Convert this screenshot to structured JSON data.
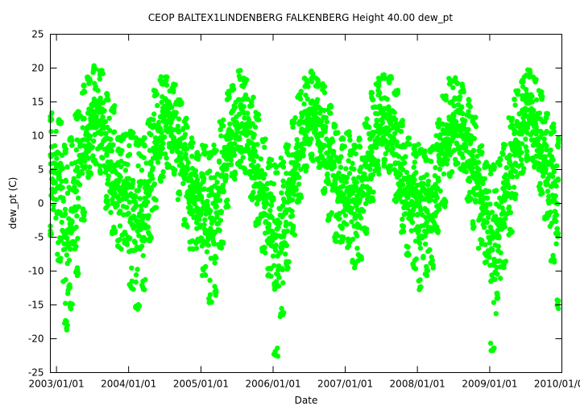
{
  "chart_data": {
    "type": "scatter",
    "title": "CEOP BALTEX1LINDENBERG FALKENBERG Height 40.00 dew_pt",
    "xlabel": "Date",
    "ylabel": "dew_pt (C)",
    "ylim": [
      -25,
      25
    ],
    "xlim": [
      "2002-12-01",
      "2010-01-01"
    ],
    "y_ticks": [
      25,
      20,
      15,
      10,
      5,
      0,
      -5,
      -10,
      -15,
      -20,
      -25
    ],
    "x_ticks": [
      "2003/01/01",
      "2004/01/01",
      "2005/01/01",
      "2006/01/01",
      "2007/01/01",
      "2008/01/01",
      "2009/01/01",
      "2010/01/01"
    ],
    "grid": false,
    "legend": "none",
    "marker_color": "#00ff00",
    "series_envelope": {
      "description_units": "degrees C",
      "x": [
        "2002-12-01",
        "2003-01-15",
        "2003-02-15",
        "2003-03-15",
        "2003-04-15",
        "2003-05-15",
        "2003-06-15",
        "2003-07-15",
        "2003-08-15",
        "2003-09-15",
        "2003-10-15",
        "2003-11-15",
        "2003-12-15",
        "2004-01-15",
        "2004-02-15",
        "2004-03-15",
        "2004-04-15",
        "2004-05-15",
        "2004-06-15",
        "2004-07-15",
        "2004-08-15",
        "2004-09-15",
        "2004-10-15",
        "2004-11-15",
        "2004-12-15",
        "2005-01-15",
        "2005-02-15",
        "2005-03-15",
        "2005-04-15",
        "2005-05-15",
        "2005-06-15",
        "2005-07-15",
        "2005-08-15",
        "2005-09-15",
        "2005-10-15",
        "2005-11-15",
        "2005-12-15",
        "2006-01-15",
        "2006-02-15",
        "2006-03-15",
        "2006-04-15",
        "2006-05-15",
        "2006-06-15",
        "2006-07-15",
        "2006-08-15",
        "2006-09-15",
        "2006-10-15",
        "2006-11-15",
        "2006-12-15",
        "2007-01-15",
        "2007-02-15",
        "2007-03-15",
        "2007-04-15",
        "2007-05-15",
        "2007-06-15",
        "2007-07-15",
        "2007-08-15",
        "2007-09-15",
        "2007-10-15",
        "2007-11-15",
        "2007-12-15",
        "2008-01-15",
        "2008-02-15",
        "2008-03-15",
        "2008-04-15",
        "2008-05-15",
        "2008-06-15",
        "2008-07-15",
        "2008-08-15",
        "2008-09-15",
        "2008-10-15",
        "2008-11-15",
        "2008-12-15",
        "2009-01-15",
        "2009-02-15",
        "2009-03-15",
        "2009-04-15",
        "2009-05-15",
        "2009-06-15",
        "2009-07-15",
        "2009-08-15",
        "2009-09-15",
        "2009-10-15",
        "2009-11-15",
        "2009-12-15"
      ],
      "upper": [
        13,
        12,
        8,
        9,
        13,
        17,
        18,
        20,
        19,
        16,
        14,
        10,
        10,
        10,
        9,
        9,
        12,
        16,
        18,
        18,
        17,
        15,
        12,
        9,
        7,
        8,
        7,
        8,
        12,
        16,
        17,
        19,
        18,
        15,
        13,
        9,
        6,
        5,
        6,
        8,
        12,
        16,
        18,
        19,
        18,
        17,
        14,
        11,
        9,
        10,
        8,
        9,
        12,
        16,
        18,
        19,
        18,
        16,
        12,
        9,
        8,
        8,
        7,
        8,
        12,
        16,
        18,
        18,
        17,
        15,
        12,
        8,
        6,
        5,
        6,
        8,
        12,
        16,
        18,
        19,
        18,
        16,
        13,
        11,
        9
      ],
      "lower": [
        -4,
        -8,
        -18,
        -15,
        -10,
        -2,
        4,
        6,
        5,
        0,
        -4,
        -6,
        -6,
        -12,
        -15,
        -12,
        -5,
        0,
        4,
        6,
        5,
        1,
        -3,
        -6,
        -6,
        -10,
        -14,
        -13,
        -6,
        0,
        4,
        6,
        5,
        1,
        -3,
        -7,
        -10,
        -22,
        -16,
        -9,
        -4,
        1,
        5,
        7,
        6,
        2,
        -2,
        -5,
        -5,
        -6,
        -9,
        -8,
        -4,
        1,
        5,
        6,
        5,
        1,
        -4,
        -7,
        -9,
        -12,
        -10,
        -9,
        -4,
        0,
        4,
        6,
        5,
        1,
        -3,
        -6,
        -8,
        -21,
        -14,
        -9,
        -4,
        1,
        5,
        7,
        6,
        2,
        -2,
        -8,
        -15
      ]
    }
  }
}
